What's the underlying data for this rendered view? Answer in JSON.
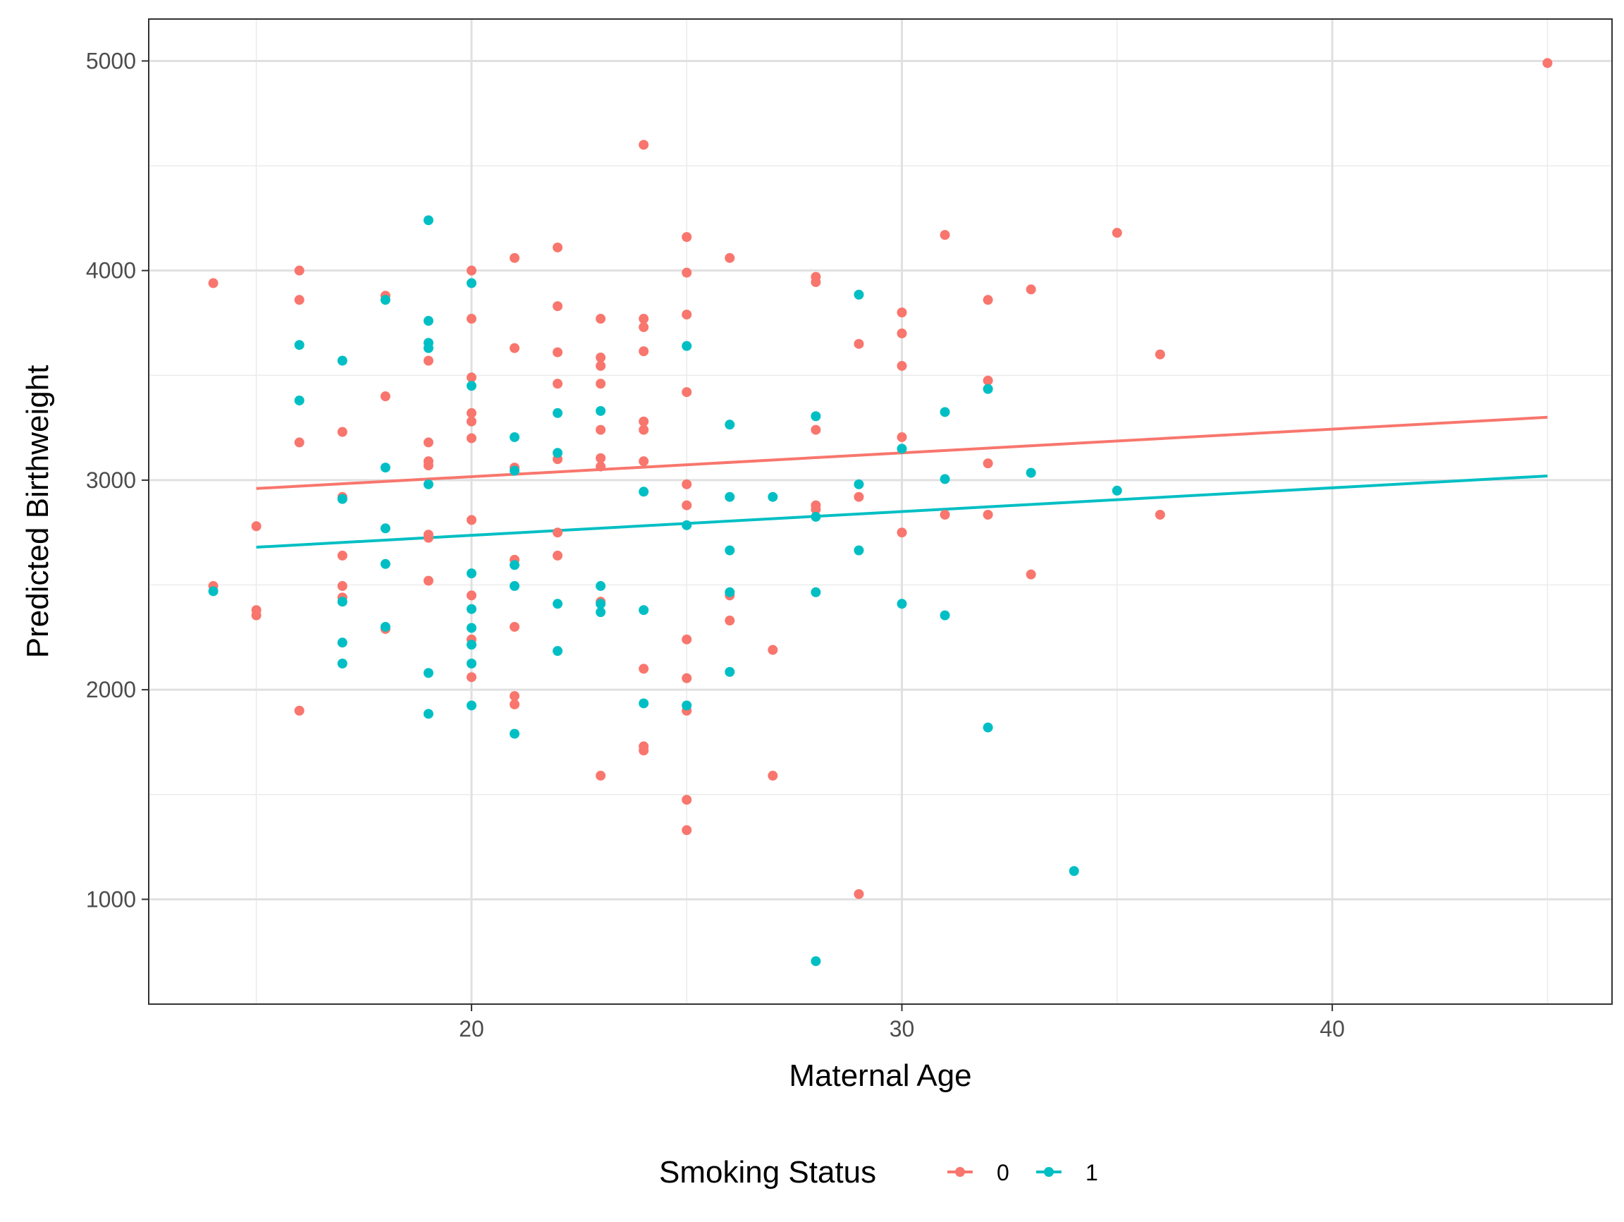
{
  "chart_data": {
    "type": "scatter",
    "title": "",
    "xlabel": "Maternal Age",
    "ylabel": "Predicted Birthweight",
    "xlim": [
      12.5,
      46.5
    ],
    "ylim": [
      500,
      5200
    ],
    "x_ticks": [
      20,
      30,
      40
    ],
    "y_ticks": [
      1000,
      2000,
      3000,
      4000,
      5000
    ],
    "x_minor": [
      15,
      25,
      35,
      45
    ],
    "y_minor": [
      1500,
      2500,
      3500,
      4500
    ],
    "grid": true,
    "legend": {
      "title": "Smoking Status",
      "position": "bottom"
    },
    "series": [
      {
        "name": "0",
        "color": "#F8766D",
        "points": [
          [
            14,
            3940
          ],
          [
            14,
            2495
          ],
          [
            15,
            2780
          ],
          [
            15,
            2380
          ],
          [
            15,
            2355
          ],
          [
            16,
            4000
          ],
          [
            16,
            3860
          ],
          [
            16,
            3180
          ],
          [
            16,
            1900
          ],
          [
            17,
            3230
          ],
          [
            17,
            2920
          ],
          [
            17,
            2640
          ],
          [
            17,
            2495
          ],
          [
            17,
            2440
          ],
          [
            18,
            3880
          ],
          [
            18,
            3400
          ],
          [
            18,
            2290
          ],
          [
            19,
            3570
          ],
          [
            19,
            3180
          ],
          [
            19,
            3090
          ],
          [
            19,
            3070
          ],
          [
            19,
            2740
          ],
          [
            19,
            2725
          ],
          [
            19,
            2520
          ],
          [
            20,
            4000
          ],
          [
            20,
            3770
          ],
          [
            20,
            3490
          ],
          [
            20,
            3320
          ],
          [
            20,
            3280
          ],
          [
            20,
            3200
          ],
          [
            20,
            2810
          ],
          [
            20,
            2450
          ],
          [
            20,
            2240
          ],
          [
            20,
            2060
          ],
          [
            21,
            4060
          ],
          [
            21,
            3630
          ],
          [
            21,
            3060
          ],
          [
            21,
            2620
          ],
          [
            21,
            2300
          ],
          [
            21,
            1970
          ],
          [
            21,
            1930
          ],
          [
            22,
            4110
          ],
          [
            22,
            3830
          ],
          [
            22,
            3610
          ],
          [
            22,
            3460
          ],
          [
            22,
            3100
          ],
          [
            22,
            2750
          ],
          [
            22,
            2640
          ],
          [
            23,
            3770
          ],
          [
            23,
            3585
          ],
          [
            23,
            3545
          ],
          [
            23,
            3460
          ],
          [
            23,
            3240
          ],
          [
            23,
            3105
          ],
          [
            23,
            3065
          ],
          [
            23,
            2420
          ],
          [
            23,
            1590
          ],
          [
            24,
            4600
          ],
          [
            24,
            3770
          ],
          [
            24,
            3730
          ],
          [
            24,
            3615
          ],
          [
            24,
            3280
          ],
          [
            24,
            3240
          ],
          [
            24,
            3090
          ],
          [
            24,
            2100
          ],
          [
            24,
            1730
          ],
          [
            24,
            1710
          ],
          [
            25,
            4160
          ],
          [
            25,
            3990
          ],
          [
            25,
            3790
          ],
          [
            25,
            3420
          ],
          [
            25,
            2980
          ],
          [
            25,
            2880
          ],
          [
            25,
            2240
          ],
          [
            25,
            2055
          ],
          [
            25,
            1900
          ],
          [
            25,
            1475
          ],
          [
            25,
            1330
          ],
          [
            26,
            4060
          ],
          [
            26,
            2450
          ],
          [
            26,
            2330
          ],
          [
            27,
            2190
          ],
          [
            27,
            1590
          ],
          [
            28,
            3970
          ],
          [
            28,
            3945
          ],
          [
            28,
            3240
          ],
          [
            28,
            2880
          ],
          [
            28,
            2860
          ],
          [
            29,
            3650
          ],
          [
            29,
            2920
          ],
          [
            29,
            1025
          ],
          [
            30,
            3800
          ],
          [
            30,
            3700
          ],
          [
            30,
            3545
          ],
          [
            30,
            3205
          ],
          [
            30,
            2750
          ],
          [
            31,
            4170
          ],
          [
            31,
            2835
          ],
          [
            32,
            3860
          ],
          [
            32,
            3475
          ],
          [
            32,
            3080
          ],
          [
            32,
            2835
          ],
          [
            33,
            3910
          ],
          [
            33,
            2550
          ],
          [
            35,
            4180
          ],
          [
            36,
            3600
          ],
          [
            36,
            2835
          ],
          [
            45,
            4990
          ]
        ],
        "fit": [
          [
            15,
            2960
          ],
          [
            45,
            3300
          ]
        ]
      },
      {
        "name": "1",
        "color": "#00BFC4",
        "points": [
          [
            14,
            2470
          ],
          [
            16,
            3645
          ],
          [
            16,
            3380
          ],
          [
            17,
            3570
          ],
          [
            17,
            2910
          ],
          [
            17,
            2420
          ],
          [
            17,
            2225
          ],
          [
            17,
            2125
          ],
          [
            18,
            3860
          ],
          [
            18,
            3060
          ],
          [
            18,
            2770
          ],
          [
            18,
            2600
          ],
          [
            18,
            2300
          ],
          [
            19,
            4240
          ],
          [
            19,
            3760
          ],
          [
            19,
            3655
          ],
          [
            19,
            3630
          ],
          [
            19,
            2980
          ],
          [
            19,
            2080
          ],
          [
            19,
            1885
          ],
          [
            20,
            3940
          ],
          [
            20,
            3450
          ],
          [
            20,
            2555
          ],
          [
            20,
            2385
          ],
          [
            20,
            2295
          ],
          [
            20,
            2215
          ],
          [
            20,
            2125
          ],
          [
            20,
            1925
          ],
          [
            21,
            3205
          ],
          [
            21,
            3045
          ],
          [
            21,
            2595
          ],
          [
            21,
            2495
          ],
          [
            21,
            1790
          ],
          [
            22,
            3320
          ],
          [
            22,
            3130
          ],
          [
            22,
            2410
          ],
          [
            22,
            2185
          ],
          [
            23,
            3330
          ],
          [
            23,
            2495
          ],
          [
            23,
            2410
          ],
          [
            23,
            2370
          ],
          [
            24,
            2945
          ],
          [
            24,
            2380
          ],
          [
            24,
            1935
          ],
          [
            25,
            3640
          ],
          [
            25,
            2785
          ],
          [
            25,
            1925
          ],
          [
            26,
            3265
          ],
          [
            26,
            2920
          ],
          [
            26,
            2665
          ],
          [
            26,
            2465
          ],
          [
            26,
            2085
          ],
          [
            27,
            2920
          ],
          [
            28,
            3305
          ],
          [
            28,
            2825
          ],
          [
            28,
            2465
          ],
          [
            28,
            705
          ],
          [
            29,
            3885
          ],
          [
            29,
            2980
          ],
          [
            29,
            2665
          ],
          [
            30,
            3150
          ],
          [
            30,
            2410
          ],
          [
            31,
            3325
          ],
          [
            31,
            3005
          ],
          [
            31,
            2355
          ],
          [
            32,
            3435
          ],
          [
            32,
            1820
          ],
          [
            33,
            3035
          ],
          [
            34,
            1135
          ],
          [
            35,
            2950
          ]
        ],
        "fit": [
          [
            15,
            2680
          ],
          [
            45,
            3020
          ]
        ]
      }
    ]
  }
}
